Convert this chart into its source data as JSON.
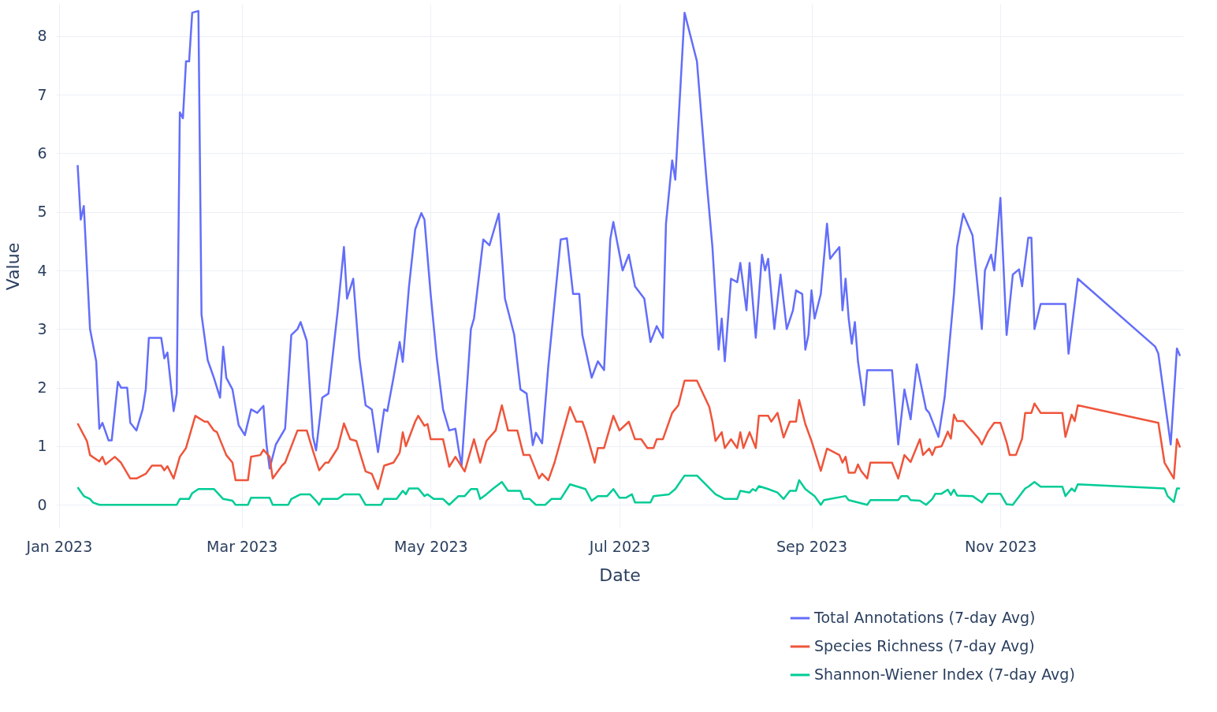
{
  "chart_data": {
    "type": "line",
    "xlabel": "Date",
    "ylabel": "Value",
    "xlim": [
      "2022-12-31",
      "2023-12-30"
    ],
    "xticks": [
      {
        "value": "2023-01-01",
        "label": "Jan 2023"
      },
      {
        "value": "2023-03-01",
        "label": "Mar 2023"
      },
      {
        "value": "2023-05-01",
        "label": "May 2023"
      },
      {
        "value": "2023-07-01",
        "label": "Jul 2023"
      },
      {
        "value": "2023-09-01",
        "label": "Sep 2023"
      },
      {
        "value": "2023-11-01",
        "label": "Nov 2023"
      }
    ],
    "ylim": [
      -0.4,
      8.55
    ],
    "yticks": [
      0,
      1,
      2,
      3,
      4,
      5,
      6,
      7,
      8
    ],
    "grid": true,
    "legend": "bottom right",
    "marker": "none",
    "line_style": "solid",
    "series": [
      {
        "name": "Total Annotations (7-day Avg)",
        "color": "#636efa",
        "x": [
          "2023-01-07",
          "2023-01-08",
          "2023-01-09",
          "2023-01-11",
          "2023-01-13",
          "2023-01-14",
          "2023-01-15",
          "2023-01-17",
          "2023-01-18",
          "2023-01-20",
          "2023-01-21",
          "2023-01-23",
          "2023-01-24",
          "2023-01-26",
          "2023-01-28",
          "2023-01-29",
          "2023-01-30",
          "2023-02-03",
          "2023-02-04",
          "2023-02-05",
          "2023-02-07",
          "2023-02-08",
          "2023-02-09",
          "2023-02-10",
          "2023-02-11",
          "2023-02-12",
          "2023-02-13",
          "2023-02-15",
          "2023-02-16",
          "2023-02-18",
          "2023-02-20",
          "2023-02-22",
          "2023-02-23",
          "2023-02-24",
          "2023-02-26",
          "2023-02-28",
          "2023-03-02",
          "2023-03-04",
          "2023-03-06",
          "2023-03-08",
          "2023-03-09",
          "2023-03-10",
          "2023-03-12",
          "2023-03-15",
          "2023-03-17",
          "2023-03-19",
          "2023-03-20",
          "2023-03-22",
          "2023-03-24",
          "2023-03-25",
          "2023-03-27",
          "2023-03-29",
          "2023-04-01",
          "2023-04-03",
          "2023-04-04",
          "2023-04-06",
          "2023-04-08",
          "2023-04-10",
          "2023-04-12",
          "2023-04-14",
          "2023-04-16",
          "2023-04-17",
          "2023-04-19",
          "2023-04-21",
          "2023-04-22",
          "2023-04-24",
          "2023-04-26",
          "2023-04-28",
          "2023-04-29",
          "2023-05-01",
          "2023-05-03",
          "2023-05-05",
          "2023-05-07",
          "2023-05-09",
          "2023-05-10",
          "2023-05-11",
          "2023-05-14",
          "2023-05-15",
          "2023-05-18",
          "2023-05-20",
          "2023-05-23",
          "2023-05-25",
          "2023-05-28",
          "2023-05-30",
          "2023-06-01",
          "2023-06-03",
          "2023-06-04",
          "2023-06-06",
          "2023-06-08",
          "2023-06-12",
          "2023-06-14",
          "2023-06-16",
          "2023-06-18",
          "2023-06-19",
          "2023-06-22",
          "2023-06-24",
          "2023-06-26",
          "2023-06-28",
          "2023-06-29",
          "2023-07-02",
          "2023-07-04",
          "2023-07-06",
          "2023-07-09",
          "2023-07-11",
          "2023-07-13",
          "2023-07-15",
          "2023-07-16",
          "2023-07-18",
          "2023-07-19",
          "2023-07-22",
          "2023-07-26",
          "2023-07-29",
          "2023-07-31",
          "2023-08-02",
          "2023-08-03",
          "2023-08-04",
          "2023-08-06",
          "2023-08-08",
          "2023-08-09",
          "2023-08-11",
          "2023-08-12",
          "2023-08-14",
          "2023-08-16",
          "2023-08-17",
          "2023-08-18",
          "2023-08-20",
          "2023-08-22",
          "2023-08-24",
          "2023-08-26",
          "2023-08-27",
          "2023-08-29",
          "2023-08-30",
          "2023-08-31",
          "2023-09-01",
          "2023-09-02",
          "2023-09-04",
          "2023-09-06",
          "2023-09-07",
          "2023-09-08",
          "2023-09-10",
          "2023-09-11",
          "2023-09-12",
          "2023-09-13",
          "2023-09-14",
          "2023-09-15",
          "2023-09-16",
          "2023-09-18",
          "2023-09-19",
          "2023-09-27",
          "2023-09-29",
          "2023-10-01",
          "2023-10-03",
          "2023-10-05",
          "2023-10-08",
          "2023-10-09",
          "2023-10-12",
          "2023-10-14",
          "2023-10-17",
          "2023-10-18",
          "2023-10-20",
          "2023-10-23",
          "2023-10-26",
          "2023-10-27",
          "2023-10-29",
          "2023-10-30",
          "2023-11-01",
          "2023-11-03",
          "2023-11-05",
          "2023-11-07",
          "2023-11-08",
          "2023-11-10",
          "2023-11-11",
          "2023-11-12",
          "2023-11-14",
          "2023-11-22",
          "2023-11-23",
          "2023-11-26",
          "2023-12-21",
          "2023-12-22",
          "2023-12-26",
          "2023-12-28",
          "2023-12-29"
        ],
        "values": [
          5.8,
          4.87,
          5.1,
          3.0,
          2.45,
          1.3,
          1.4,
          1.1,
          1.1,
          2.1,
          2.0,
          2.0,
          1.4,
          1.27,
          1.63,
          1.97,
          2.85,
          2.85,
          2.5,
          2.6,
          1.6,
          1.9,
          6.7,
          6.6,
          7.57,
          7.57,
          8.4,
          8.43,
          3.25,
          2.47,
          2.17,
          1.83,
          2.7,
          2.17,
          1.97,
          1.36,
          1.19,
          1.63,
          1.57,
          1.69,
          1.03,
          0.62,
          1.03,
          1.3,
          2.9,
          3.0,
          3.12,
          2.8,
          1.16,
          0.93,
          1.83,
          1.9,
          3.32,
          4.4,
          3.52,
          3.86,
          2.5,
          1.7,
          1.63,
          0.9,
          1.63,
          1.6,
          2.17,
          2.78,
          2.44,
          3.72,
          4.7,
          4.98,
          4.87,
          3.6,
          2.5,
          1.63,
          1.27,
          1.3,
          0.96,
          0.67,
          3.0,
          3.18,
          4.53,
          4.43,
          4.97,
          3.52,
          2.9,
          1.97,
          1.9,
          1.02,
          1.23,
          1.05,
          2.37,
          4.53,
          4.55,
          3.6,
          3.6,
          2.9,
          2.17,
          2.45,
          2.3,
          4.53,
          4.83,
          4.0,
          4.27,
          3.73,
          3.52,
          2.78,
          3.05,
          2.85,
          4.8,
          5.88,
          5.55,
          8.4,
          7.57,
          5.6,
          4.4,
          2.65,
          3.18,
          2.45,
          3.86,
          3.8,
          4.13,
          3.32,
          4.13,
          2.85,
          4.27,
          4.0,
          4.2,
          3.0,
          3.93,
          3.0,
          3.32,
          3.66,
          3.6,
          2.65,
          2.9,
          3.66,
          3.18,
          3.6,
          4.8,
          4.2,
          4.27,
          4.4,
          3.32,
          3.86,
          3.18,
          2.75,
          3.12,
          2.45,
          1.7,
          2.3,
          2.3,
          1.03,
          1.97,
          1.46,
          2.4,
          1.63,
          1.57,
          1.16,
          1.84,
          3.6,
          4.4,
          4.97,
          4.6,
          3.0,
          4.0,
          4.27,
          4.0,
          5.24,
          2.9,
          3.93,
          4.02,
          3.73,
          4.56,
          4.56,
          3.0,
          3.43,
          3.43,
          2.58,
          3.86,
          2.7,
          2.58,
          1.03,
          2.67,
          2.54
        ]
      },
      {
        "name": "Species Richness (7-day Avg)",
        "color": "#ef553b",
        "x": [
          "2023-01-07",
          "2023-01-10",
          "2023-01-11",
          "2023-01-14",
          "2023-01-15",
          "2023-01-16",
          "2023-01-19",
          "2023-01-21",
          "2023-01-24",
          "2023-01-26",
          "2023-01-29",
          "2023-01-31",
          "2023-02-03",
          "2023-02-04",
          "2023-02-05",
          "2023-02-07",
          "2023-02-09",
          "2023-02-11",
          "2023-02-14",
          "2023-02-17",
          "2023-02-18",
          "2023-02-20",
          "2023-02-21",
          "2023-02-24",
          "2023-02-26",
          "2023-02-27",
          "2023-03-03",
          "2023-03-04",
          "2023-03-07",
          "2023-03-08",
          "2023-03-10",
          "2023-03-11",
          "2023-03-14",
          "2023-03-15",
          "2023-03-19",
          "2023-03-22",
          "2023-03-24",
          "2023-03-26",
          "2023-03-28",
          "2023-03-29",
          "2023-04-01",
          "2023-04-03",
          "2023-04-05",
          "2023-04-07",
          "2023-04-10",
          "2023-04-12",
          "2023-04-14",
          "2023-04-16",
          "2023-04-19",
          "2023-04-21",
          "2023-04-22",
          "2023-04-23",
          "2023-04-26",
          "2023-04-27",
          "2023-04-29",
          "2023-04-30",
          "2023-05-01",
          "2023-05-05",
          "2023-05-07",
          "2023-05-09",
          "2023-05-12",
          "2023-05-15",
          "2023-05-17",
          "2023-05-19",
          "2023-05-22",
          "2023-05-24",
          "2023-05-26",
          "2023-05-29",
          "2023-05-31",
          "2023-06-02",
          "2023-06-05",
          "2023-06-06",
          "2023-06-08",
          "2023-06-10",
          "2023-06-15",
          "2023-06-17",
          "2023-06-19",
          "2023-06-20",
          "2023-06-23",
          "2023-06-24",
          "2023-06-26",
          "2023-06-29",
          "2023-07-01",
          "2023-07-04",
          "2023-07-06",
          "2023-07-08",
          "2023-07-10",
          "2023-07-12",
          "2023-07-13",
          "2023-07-15",
          "2023-07-18",
          "2023-07-20",
          "2023-07-22",
          "2023-07-26",
          "2023-07-30",
          "2023-07-31",
          "2023-08-01",
          "2023-08-03",
          "2023-08-04",
          "2023-08-06",
          "2023-08-08",
          "2023-08-09",
          "2023-08-10",
          "2023-08-12",
          "2023-08-14",
          "2023-08-15",
          "2023-08-18",
          "2023-08-19",
          "2023-08-21",
          "2023-08-23",
          "2023-08-25",
          "2023-08-27",
          "2023-08-28",
          "2023-08-30",
          "2023-09-01",
          "2023-09-04",
          "2023-09-06",
          "2023-09-10",
          "2023-09-11",
          "2023-09-12",
          "2023-09-13",
          "2023-09-15",
          "2023-09-16",
          "2023-09-17",
          "2023-09-19",
          "2023-09-20",
          "2023-09-27",
          "2023-09-29",
          "2023-10-01",
          "2023-10-03",
          "2023-10-06",
          "2023-10-07",
          "2023-10-09",
          "2023-10-10",
          "2023-10-11",
          "2023-10-13",
          "2023-10-15",
          "2023-10-16",
          "2023-10-17",
          "2023-10-18",
          "2023-10-20",
          "2023-10-25",
          "2023-10-26",
          "2023-10-28",
          "2023-10-30",
          "2023-11-01",
          "2023-11-03",
          "2023-11-04",
          "2023-11-06",
          "2023-11-08",
          "2023-11-09",
          "2023-11-11",
          "2023-11-12",
          "2023-11-14",
          "2023-11-21",
          "2023-11-22",
          "2023-11-24",
          "2023-11-25",
          "2023-11-26",
          "2023-12-22",
          "2023-12-24",
          "2023-12-27",
          "2023-12-28",
          "2023-12-29"
        ],
        "values": [
          1.39,
          1.09,
          0.85,
          0.74,
          0.82,
          0.69,
          0.82,
          0.72,
          0.45,
          0.45,
          0.53,
          0.67,
          0.67,
          0.59,
          0.66,
          0.45,
          0.82,
          0.97,
          1.52,
          1.42,
          1.42,
          1.27,
          1.24,
          0.85,
          0.72,
          0.42,
          0.42,
          0.82,
          0.85,
          0.94,
          0.82,
          0.45,
          0.67,
          0.72,
          1.27,
          1.27,
          0.92,
          0.59,
          0.72,
          0.72,
          0.97,
          1.39,
          1.12,
          1.09,
          0.57,
          0.53,
          0.27,
          0.67,
          0.72,
          0.89,
          1.24,
          1.0,
          1.42,
          1.52,
          1.35,
          1.38,
          1.12,
          1.12,
          0.65,
          0.82,
          0.57,
          1.12,
          0.72,
          1.09,
          1.27,
          1.7,
          1.27,
          1.27,
          0.85,
          0.85,
          0.45,
          0.53,
          0.42,
          0.72,
          1.67,
          1.42,
          1.42,
          1.27,
          0.72,
          0.97,
          0.97,
          1.52,
          1.27,
          1.42,
          1.12,
          1.12,
          0.97,
          0.97,
          1.12,
          1.12,
          1.57,
          1.7,
          2.12,
          2.12,
          1.67,
          1.42,
          1.09,
          1.24,
          0.97,
          1.12,
          0.97,
          1.24,
          0.97,
          1.24,
          0.97,
          1.52,
          1.52,
          1.42,
          1.57,
          1.15,
          1.42,
          1.42,
          1.79,
          1.38,
          1.09,
          0.58,
          0.96,
          0.85,
          0.72,
          0.82,
          0.55,
          0.55,
          0.69,
          0.58,
          0.45,
          0.72,
          0.72,
          0.45,
          0.85,
          0.73,
          1.12,
          0.85,
          0.96,
          0.85,
          0.98,
          1.0,
          1.25,
          1.13,
          1.54,
          1.43,
          1.43,
          1.13,
          1.03,
          1.25,
          1.4,
          1.4,
          1.07,
          0.85,
          0.85,
          1.13,
          1.57,
          1.57,
          1.73,
          1.57,
          1.57,
          1.16,
          1.54,
          1.43,
          1.7,
          1.4,
          0.72,
          0.45,
          1.12,
          0.98
        ]
      },
      {
        "name": "Shannon-Wiener Index (7-day Avg)",
        "color": "#00cc96",
        "x": [
          "2023-01-07",
          "2023-01-09",
          "2023-01-11",
          "2023-01-12",
          "2023-01-14",
          "2023-02-08",
          "2023-02-09",
          "2023-02-12",
          "2023-02-13",
          "2023-02-15",
          "2023-02-20",
          "2023-02-23",
          "2023-02-26",
          "2023-02-27",
          "2023-03-03",
          "2023-03-04",
          "2023-03-10",
          "2023-03-11",
          "2023-03-16",
          "2023-03-17",
          "2023-03-20",
          "2023-03-23",
          "2023-03-25",
          "2023-03-26",
          "2023-03-27",
          "2023-04-01",
          "2023-04-03",
          "2023-04-08",
          "2023-04-10",
          "2023-04-15",
          "2023-04-16",
          "2023-04-20",
          "2023-04-22",
          "2023-04-23",
          "2023-04-24",
          "2023-04-27",
          "2023-04-29",
          "2023-04-30",
          "2023-05-02",
          "2023-05-05",
          "2023-05-07",
          "2023-05-10",
          "2023-05-12",
          "2023-05-14",
          "2023-05-16",
          "2023-05-17",
          "2023-05-19",
          "2023-05-21",
          "2023-05-24",
          "2023-05-26",
          "2023-05-30",
          "2023-05-31",
          "2023-06-02",
          "2023-06-04",
          "2023-06-07",
          "2023-06-09",
          "2023-06-12",
          "2023-06-15",
          "2023-06-20",
          "2023-06-22",
          "2023-06-24",
          "2023-06-27",
          "2023-06-29",
          "2023-07-01",
          "2023-07-03",
          "2023-07-05",
          "2023-07-06",
          "2023-07-11",
          "2023-07-12",
          "2023-07-17",
          "2023-07-19",
          "2023-07-22",
          "2023-07-26",
          "2023-08-01",
          "2023-08-04",
          "2023-08-08",
          "2023-08-09",
          "2023-08-12",
          "2023-08-13",
          "2023-08-14",
          "2023-08-15",
          "2023-08-18",
          "2023-08-21",
          "2023-08-23",
          "2023-08-25",
          "2023-08-27",
          "2023-08-28",
          "2023-08-30",
          "2023-09-02",
          "2023-09-04",
          "2023-09-05",
          "2023-09-12",
          "2023-09-13",
          "2023-09-19",
          "2023-09-20",
          "2023-09-29",
          "2023-09-30",
          "2023-10-02",
          "2023-10-03",
          "2023-10-06",
          "2023-10-08",
          "2023-10-10",
          "2023-10-11",
          "2023-10-13",
          "2023-10-15",
          "2023-10-16",
          "2023-10-17",
          "2023-10-18",
          "2023-10-23",
          "2023-10-26",
          "2023-10-28",
          "2023-11-01",
          "2023-11-03",
          "2023-11-05",
          "2023-11-06",
          "2023-11-09",
          "2023-11-10",
          "2023-11-12",
          "2023-11-14",
          "2023-11-21",
          "2023-11-22",
          "2023-11-24",
          "2023-11-25",
          "2023-11-26",
          "2023-12-24",
          "2023-12-25",
          "2023-12-27",
          "2023-12-28",
          "2023-12-29"
        ],
        "values": [
          0.3,
          0.15,
          0.1,
          0.04,
          0,
          0,
          0.1,
          0.1,
          0.2,
          0.27,
          0.27,
          0.1,
          0.07,
          0,
          0,
          0.12,
          0.12,
          0,
          0,
          0.1,
          0.18,
          0.18,
          0.07,
          0,
          0.1,
          0.1,
          0.18,
          0.18,
          0,
          0,
          0.1,
          0.1,
          0.24,
          0.18,
          0.28,
          0.28,
          0.15,
          0.18,
          0.1,
          0.1,
          0,
          0.15,
          0.15,
          0.27,
          0.27,
          0.1,
          0.18,
          0.27,
          0.39,
          0.24,
          0.24,
          0.1,
          0.1,
          0,
          0,
          0.1,
          0.1,
          0.35,
          0.27,
          0.07,
          0.15,
          0.15,
          0.27,
          0.12,
          0.12,
          0.18,
          0.04,
          0.04,
          0.15,
          0.18,
          0.27,
          0.5,
          0.5,
          0.18,
          0.1,
          0.1,
          0.24,
          0.21,
          0.27,
          0.24,
          0.32,
          0.27,
          0.21,
          0.1,
          0.24,
          0.24,
          0.42,
          0.27,
          0.15,
          0,
          0.08,
          0.15,
          0.08,
          0,
          0.08,
          0.08,
          0.15,
          0.15,
          0.08,
          0.07,
          0,
          0.1,
          0.19,
          0.19,
          0.26,
          0.17,
          0.26,
          0.16,
          0.15,
          0.04,
          0.19,
          0.19,
          0.01,
          0,
          0.07,
          0.28,
          0.31,
          0.39,
          0.31,
          0.31,
          0.15,
          0.28,
          0.23,
          0.35,
          0.28,
          0.15,
          0.05,
          0.28,
          0.28
        ]
      }
    ]
  }
}
